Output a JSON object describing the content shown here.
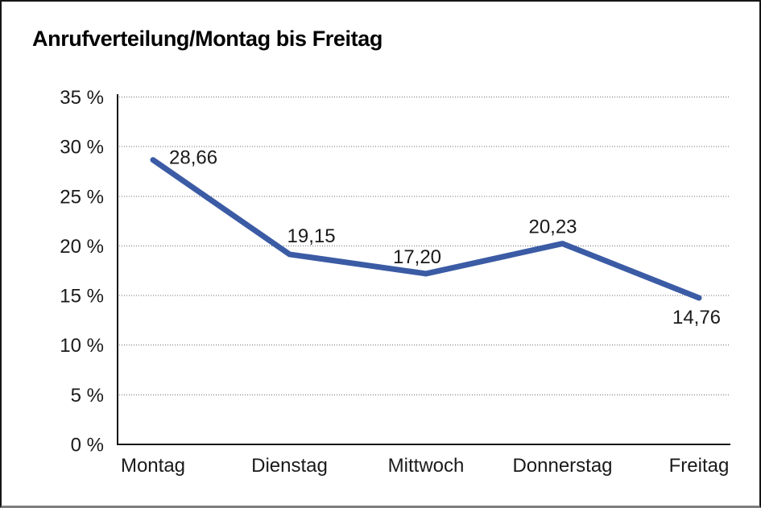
{
  "page": {
    "title": "Anrufverteilung/Montag bis Freitag"
  },
  "chart_data": {
    "type": "line",
    "title": "Anrufverteilung/Montag bis Freitag",
    "categories": [
      "Montag",
      "Dienstag",
      "Mittwoch",
      "Donnerstag",
      "Freitag"
    ],
    "values": [
      28.66,
      19.15,
      17.2,
      20.23,
      14.76
    ],
    "value_labels": [
      "28,66",
      "19,15",
      "17,20",
      "20,23",
      "14,76"
    ],
    "xlabel": "",
    "ylabel": "",
    "ylim": [
      0,
      35
    ],
    "y_tick_step": 5,
    "y_tick_labels": [
      "0 %",
      "5 %",
      "10 %",
      "15 %",
      "20 %",
      "25 %",
      "30 %",
      "35 %"
    ],
    "grid": "horizontal-dotted",
    "legend_position": "none",
    "markers": "none",
    "colors": {
      "line": "#3B5BA5",
      "text": "#1a1a1a",
      "axis": "#161616",
      "gridline": "#6e6e6e",
      "background": "#ffffff"
    }
  }
}
